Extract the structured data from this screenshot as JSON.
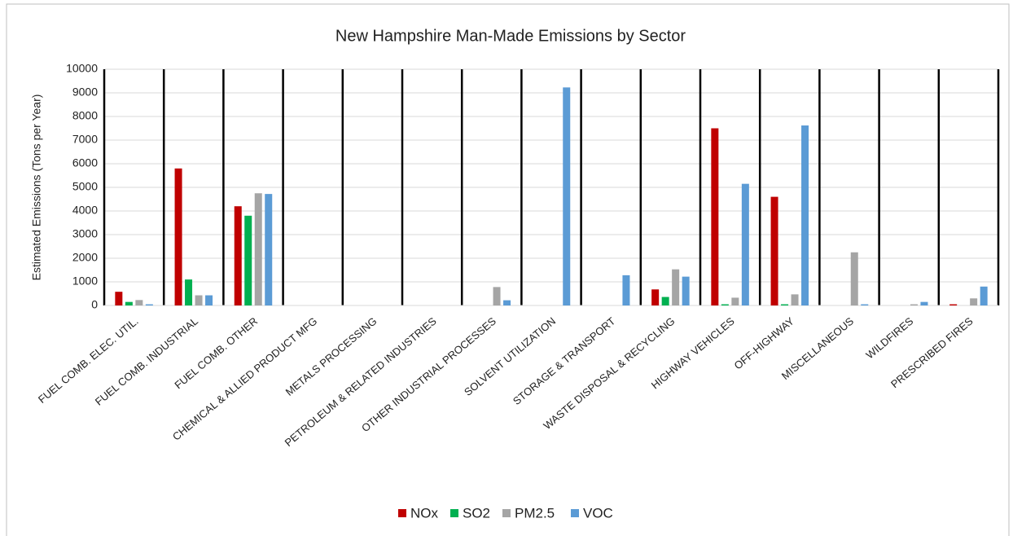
{
  "chart_data": {
    "type": "bar",
    "title": "New Hampshire Man-Made Emissions by Sector",
    "y_label": "Estimated Emissions (Tons per Year)",
    "categories": [
      "FUEL COMB. ELEC. UTIL.",
      "FUEL COMB. INDUSTRIAL",
      "FUEL COMB. OTHER",
      "CHEMICAL & ALLIED PRODUCT MFG",
      "METALS PROCESSING",
      "PETROLEUM & RELATED INDUSTRIES",
      "OTHER INDUSTRIAL PROCESSES",
      "SOLVENT UTILIZATION",
      "STORAGE & TRANSPORT",
      "WASTE DISPOSAL & RECYCLING",
      "HIGHWAY VEHICLES",
      "OFF-HIGHWAY",
      "MISCELLANEOUS",
      "WILDFIRES",
      "PRESCRIBED FIRES"
    ],
    "series": [
      {
        "name": "NOx",
        "color": "#c00000",
        "values": [
          580,
          5800,
          4200,
          0,
          0,
          0,
          0,
          0,
          0,
          680,
          7500,
          4600,
          0,
          0,
          50
        ]
      },
      {
        "name": "SO2",
        "color": "#00b050",
        "values": [
          150,
          1100,
          3800,
          0,
          0,
          0,
          0,
          0,
          0,
          360,
          50,
          50,
          0,
          0,
          0
        ]
      },
      {
        "name": "PM2.5",
        "color": "#a5a5a5",
        "values": [
          230,
          430,
          4750,
          0,
          0,
          0,
          780,
          0,
          0,
          1530,
          330,
          470,
          2250,
          50,
          300
        ]
      },
      {
        "name": "VOC",
        "color": "#5b9bd5",
        "values": [
          50,
          430,
          4720,
          0,
          0,
          0,
          220,
          9230,
          1280,
          1220,
          5150,
          7620,
          50,
          150,
          800
        ]
      }
    ],
    "ylim": [
      0,
      10000
    ],
    "yticks": [
      0,
      1000,
      2000,
      3000,
      4000,
      5000,
      6000,
      7000,
      8000,
      9000,
      10000
    ],
    "grid": true,
    "legend": "bottom"
  }
}
